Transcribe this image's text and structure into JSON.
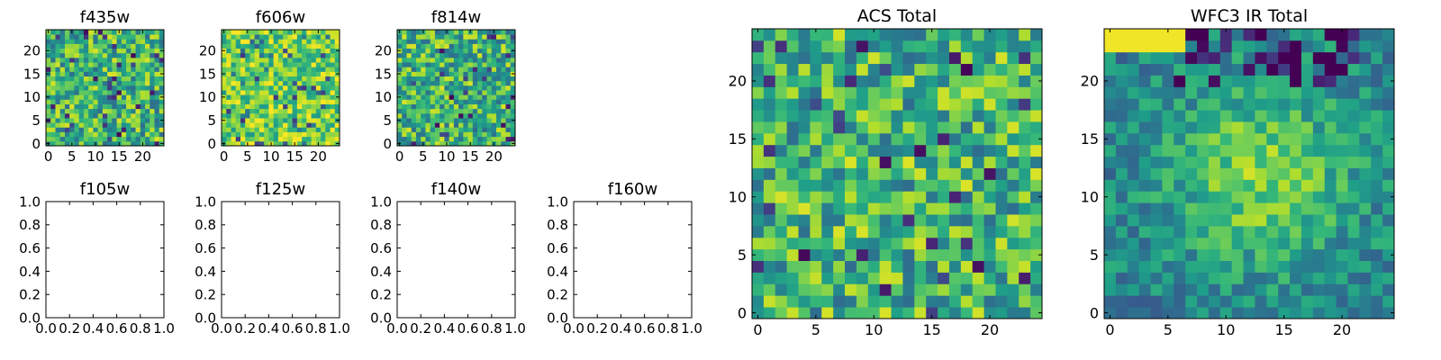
{
  "figure": {
    "title": ""
  },
  "chart_data": [
    {
      "id": "f435w",
      "type": "heatmap",
      "title": "f435w",
      "empty": false,
      "xlim": [
        -0.5,
        24.5
      ],
      "ylim": [
        -0.5,
        24.5
      ],
      "xticks": [
        0,
        5,
        10,
        15,
        20
      ],
      "yticks": [
        0,
        5,
        10,
        15,
        20
      ],
      "xticklabels": [
        "0",
        "5",
        "10",
        "15",
        "20"
      ],
      "yticklabels": [
        "0",
        "5",
        "10",
        "15",
        "20"
      ],
      "colormap": "viridis",
      "grid_size": [
        25,
        25
      ],
      "value_range": [
        0,
        1
      ],
      "style": "noisy",
      "pattern_seed": 17
    },
    {
      "id": "f606w",
      "type": "heatmap",
      "title": "f606w",
      "empty": false,
      "xlim": [
        -0.5,
        24.5
      ],
      "ylim": [
        -0.5,
        24.5
      ],
      "xticks": [
        0,
        5,
        10,
        15,
        20
      ],
      "yticks": [
        0,
        5,
        10,
        15,
        20
      ],
      "xticklabels": [
        "0",
        "5",
        "10",
        "15",
        "20"
      ],
      "yticklabels": [
        "0",
        "5",
        "10",
        "15",
        "20"
      ],
      "colormap": "viridis",
      "grid_size": [
        25,
        25
      ],
      "value_range": [
        0,
        1
      ],
      "style": "bright",
      "pattern_seed": 29
    },
    {
      "id": "f814w",
      "type": "heatmap",
      "title": "f814w",
      "empty": false,
      "xlim": [
        -0.5,
        24.5
      ],
      "ylim": [
        -0.5,
        24.5
      ],
      "xticks": [
        0,
        5,
        10,
        15,
        20
      ],
      "yticks": [
        0,
        5,
        10,
        15,
        20
      ],
      "xticklabels": [
        "0",
        "5",
        "10",
        "15",
        "20"
      ],
      "yticklabels": [
        "0",
        "5",
        "10",
        "15",
        "20"
      ],
      "colormap": "viridis",
      "grid_size": [
        25,
        25
      ],
      "value_range": [
        0,
        1
      ],
      "style": "noisy",
      "pattern_seed": 43
    },
    {
      "id": "f105w",
      "type": "heatmap",
      "title": "f105w",
      "empty": true,
      "xlim": [
        0,
        1
      ],
      "ylim": [
        0,
        1
      ],
      "xticks": [
        0,
        0.2,
        0.4,
        0.6,
        0.8,
        1.0
      ],
      "yticks": [
        0,
        0.2,
        0.4,
        0.6,
        0.8,
        1.0
      ],
      "xticklabels": [
        "0.0",
        "0.2",
        "0.4",
        "0.6",
        "0.8",
        "1.0"
      ],
      "yticklabels": [
        "0.0",
        "0.2",
        "0.4",
        "0.6",
        "0.8",
        "1.0"
      ]
    },
    {
      "id": "f125w",
      "type": "heatmap",
      "title": "f125w",
      "empty": true,
      "xlim": [
        0,
        1
      ],
      "ylim": [
        0,
        1
      ],
      "xticks": [
        0,
        0.2,
        0.4,
        0.6,
        0.8,
        1.0
      ],
      "yticks": [
        0,
        0.2,
        0.4,
        0.6,
        0.8,
        1.0
      ],
      "xticklabels": [
        "0.0",
        "0.2",
        "0.4",
        "0.6",
        "0.8",
        "1.0"
      ],
      "yticklabels": [
        "0.0",
        "0.2",
        "0.4",
        "0.6",
        "0.8",
        "1.0"
      ]
    },
    {
      "id": "f140w",
      "type": "heatmap",
      "title": "f140w",
      "empty": true,
      "xlim": [
        0,
        1
      ],
      "ylim": [
        0,
        1
      ],
      "xticks": [
        0,
        0.2,
        0.4,
        0.6,
        0.8,
        1.0
      ],
      "yticks": [
        0,
        0.2,
        0.4,
        0.6,
        0.8,
        1.0
      ],
      "xticklabels": [
        "0.0",
        "0.2",
        "0.4",
        "0.6",
        "0.8",
        "1.0"
      ],
      "yticklabels": [
        "0.0",
        "0.2",
        "0.4",
        "0.6",
        "0.8",
        "1.0"
      ]
    },
    {
      "id": "f160w",
      "type": "heatmap",
      "title": "f160w",
      "empty": true,
      "xlim": [
        0,
        1
      ],
      "ylim": [
        0,
        1
      ],
      "xticks": [
        0,
        0.2,
        0.4,
        0.6,
        0.8,
        1.0
      ],
      "yticks": [
        0,
        0.2,
        0.4,
        0.6,
        0.8,
        1.0
      ],
      "xticklabels": [
        "0.0",
        "0.2",
        "0.4",
        "0.6",
        "0.8",
        "1.0"
      ],
      "yticklabels": [
        "0.0",
        "0.2",
        "0.4",
        "0.6",
        "0.8",
        "1.0"
      ]
    },
    {
      "id": "acs-total",
      "type": "heatmap",
      "title": "ACS Total",
      "empty": false,
      "xlim": [
        -0.5,
        24.5
      ],
      "ylim": [
        -0.5,
        24.5
      ],
      "xticks": [
        0,
        5,
        10,
        15,
        20
      ],
      "yticks": [
        0,
        5,
        10,
        15,
        20
      ],
      "xticklabels": [
        "0",
        "5",
        "10",
        "15",
        "20"
      ],
      "yticklabels": [
        "0",
        "5",
        "10",
        "15",
        "20"
      ],
      "colormap": "viridis",
      "grid_size": [
        25,
        25
      ],
      "value_range": [
        0,
        1
      ],
      "style": "noisy",
      "pattern_seed": 71
    },
    {
      "id": "wfc3-ir-total",
      "type": "heatmap",
      "title": "WFC3 IR Total",
      "empty": false,
      "xlim": [
        -0.5,
        24.5
      ],
      "ylim": [
        -0.5,
        24.5
      ],
      "xticks": [
        0,
        5,
        10,
        15,
        20
      ],
      "yticks": [
        0,
        5,
        10,
        15,
        20
      ],
      "xticklabels": [
        "0",
        "5",
        "10",
        "15",
        "20"
      ],
      "yticklabels": [
        "0",
        "5",
        "10",
        "15",
        "20"
      ],
      "colormap": "viridis",
      "grid_size": [
        25,
        25
      ],
      "value_range": [
        0,
        1
      ],
      "style": "smooth",
      "pattern_seed": 97
    }
  ]
}
